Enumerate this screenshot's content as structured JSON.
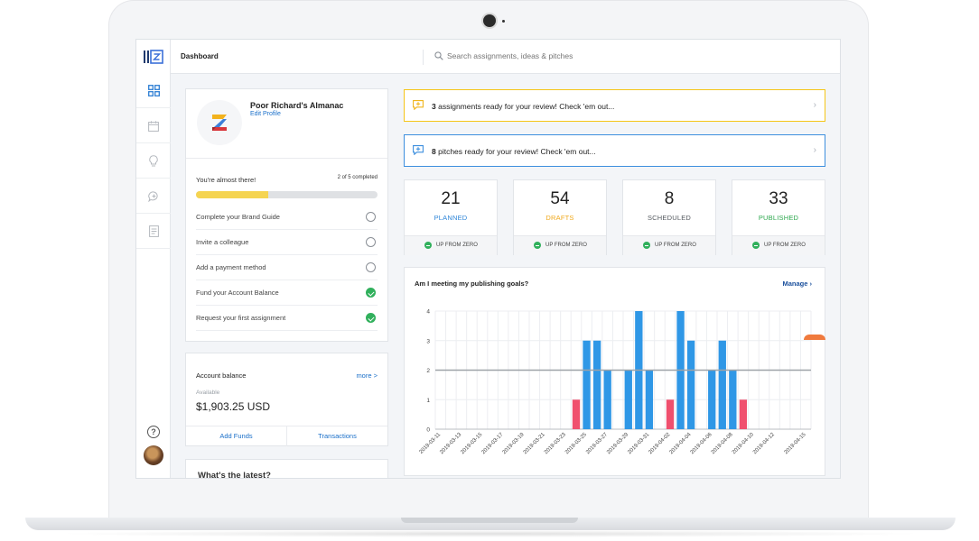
{
  "topbar": {
    "title": "Dashboard",
    "search_placeholder": "Search assignments, ideas & pitches"
  },
  "sidebar": {
    "items": [
      {
        "icon": "dashboard-grid-icon",
        "active": true
      },
      {
        "icon": "calendar-icon",
        "active": false
      },
      {
        "icon": "lightbulb-icon",
        "active": false
      },
      {
        "icon": "chat-bubble-icon",
        "active": false
      },
      {
        "icon": "document-icon",
        "active": false
      }
    ],
    "help_label": "?"
  },
  "profile": {
    "name": "Poor Richard's Almanac",
    "edit_label": "Edit Profile",
    "progress_title": "You're almost there!",
    "progress_count": "2 of 5 completed",
    "progress_fraction": 0.4,
    "tasks": [
      {
        "label": "Complete your Brand Guide",
        "done": false
      },
      {
        "label": "Invite a colleague",
        "done": false
      },
      {
        "label": "Add a payment method",
        "done": false
      },
      {
        "label": "Fund your Account Balance",
        "done": true
      },
      {
        "label": "Request your first assignment",
        "done": true
      }
    ]
  },
  "balance": {
    "title": "Account balance",
    "more_label": "more >",
    "available_label": "Available",
    "amount": "$1,903.25 USD",
    "add_funds_label": "Add Funds",
    "transactions_label": "Transactions"
  },
  "latest": {
    "title": "What's the latest?"
  },
  "alerts": [
    {
      "count": "3",
      "text": " assignments ready for your review! Check 'em out...",
      "color": "#f5c518"
    },
    {
      "count": "8",
      "text": " pitches ready for your review! Check 'em out...",
      "color": "#3d8fde"
    }
  ],
  "stats": [
    {
      "value": "21",
      "label": "PLANNED",
      "color": "#2f86d8",
      "foot": "UP FROM ZERO"
    },
    {
      "value": "54",
      "label": "DRAFTS",
      "color": "#f0a91d",
      "foot": "UP FROM ZERO"
    },
    {
      "value": "8",
      "label": "SCHEDULED",
      "color": "#555a60",
      "foot": "UP FROM ZERO"
    },
    {
      "value": "33",
      "label": "PUBLISHED",
      "color": "#2fa84f",
      "foot": "UP FROM ZERO"
    }
  ],
  "chart": {
    "title": "Am I meeting my publishing goals?",
    "manage_label": "Manage"
  },
  "chart_data": {
    "type": "bar",
    "categories": [
      "2019-03-11",
      "2019-03-12",
      "2019-03-13",
      "2019-03-14",
      "2019-03-15",
      "2019-03-16",
      "2019-03-17",
      "2019-03-18",
      "2019-03-19",
      "2019-03-20",
      "2019-03-21",
      "2019-03-22",
      "2019-03-23",
      "2019-03-24",
      "2019-03-25",
      "2019-03-26",
      "2019-03-27",
      "2019-03-28",
      "2019-03-29",
      "2019-03-30",
      "2019-03-31",
      "2019-04-01",
      "2019-04-02",
      "2019-04-03",
      "2019-04-04",
      "2019-04-05",
      "2019-04-06",
      "2019-04-07",
      "2019-04-08",
      "2019-04-09",
      "2019-04-10",
      "2019-04-11",
      "2019-04-12",
      "2019-04-13",
      "2019-04-14",
      "2019-04-15"
    ],
    "tick_labels": [
      "2019-03-11",
      "2019-03-13",
      "2019-03-15",
      "2019-03-17",
      "2019-03-19",
      "2019-03-21",
      "2019-03-23",
      "2019-03-25",
      "2019-03-27",
      "2019-03-29",
      "2019-03-31",
      "2019-04-02",
      "2019-04-04",
      "2019-04-06",
      "2019-04-08",
      "2019-04-10",
      "2019-04-12",
      "2019-04-15"
    ],
    "values": [
      0,
      0,
      0,
      0,
      0,
      0,
      0,
      0,
      0,
      0,
      0,
      0,
      0,
      1,
      3,
      3,
      2,
      0,
      2,
      4,
      2,
      0,
      1,
      4,
      3,
      0,
      2,
      3,
      2,
      1,
      0,
      0,
      0,
      0,
      0,
      0
    ],
    "below_goal_color": "#f0506e",
    "at_goal_color": "#2f97e6",
    "goal": 2,
    "goal_color": "#9ea3a8",
    "ylim": [
      0,
      4
    ],
    "yticks": [
      0,
      1,
      2,
      3,
      4
    ],
    "grid": true
  }
}
